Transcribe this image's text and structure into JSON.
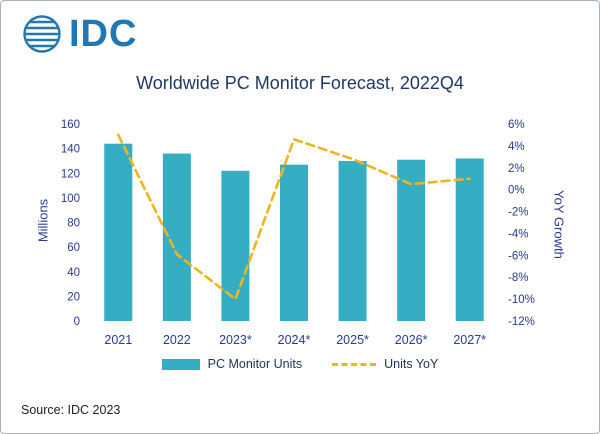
{
  "logo": {
    "text": "IDC"
  },
  "title": "Worldwide PC Monitor Forecast, 2022Q4",
  "source": "Source: IDC 2023",
  "legend": {
    "units_label": "PC Monitor Units",
    "yoy_label": "Units YoY"
  },
  "colors": {
    "bar": "#35ADC2",
    "line": "#F0B41E",
    "axis_text": "#2B3990",
    "title_text": "#1F3864",
    "logo_blue": "#2077B4"
  },
  "chart_data": {
    "type": "bar+line",
    "title": "Worldwide PC Monitor Forecast, 2022Q4",
    "categories": [
      "2021",
      "2022",
      "2023*",
      "2024*",
      "2025*",
      "2026*",
      "2027*"
    ],
    "series": [
      {
        "name": "PC Monitor Units",
        "type": "bar",
        "axis": "left",
        "values": [
          144,
          136,
          122,
          127,
          130,
          131,
          132
        ]
      },
      {
        "name": "Units YoY",
        "type": "line",
        "axis": "right",
        "values": [
          5.0,
          -5.9,
          -10.0,
          4.6,
          2.8,
          0.5,
          1.0
        ]
      }
    ],
    "left_axis": {
      "label": "Millions",
      "min": 0,
      "max": 160,
      "step": 20
    },
    "right_axis": {
      "label": "YoY Growth",
      "min": -12,
      "max": 6,
      "step": 2,
      "format": "percent"
    },
    "grid": false,
    "legend_position": "bottom"
  }
}
